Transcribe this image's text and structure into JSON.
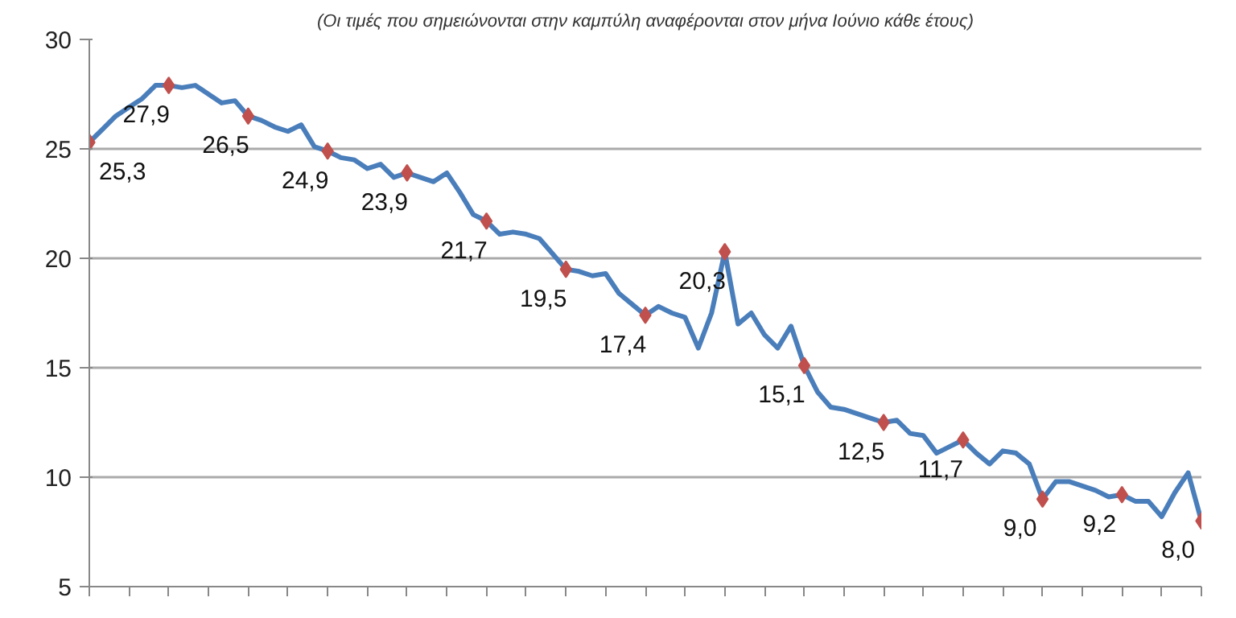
{
  "chart_data": {
    "type": "line",
    "subtitle": "(Οι τιμές που σημειώνονται στην καμπύλη αναφέρονται στον μήνα Ιούνιο κάθε έτους)",
    "categories": [
      null,
      null,
      null,
      null,
      null,
      null,
      null,
      null,
      null,
      null,
      null,
      null,
      null,
      null,
      null,
      null,
      null,
      null,
      null,
      null,
      null,
      null,
      null,
      null,
      null,
      null,
      null,
      null,
      null,
      null,
      null,
      null,
      null,
      null,
      null,
      null,
      null,
      null,
      null,
      null,
      null,
      null,
      null,
      null,
      null,
      null,
      null,
      null,
      null,
      null,
      null,
      null,
      null,
      null,
      null,
      null,
      null,
      null,
      null,
      null,
      null,
      null,
      null,
      null,
      null,
      null,
      null,
      null,
      null,
      null,
      null,
      null,
      null,
      null,
      null,
      null,
      null,
      null,
      null,
      null,
      null,
      null,
      null,
      null,
      null
    ],
    "series": [
      {
        "color": "#4a7ebb",
        "values": [
          25.3,
          25.9,
          26.5,
          26.9,
          27.3,
          27.9,
          27.9,
          27.8,
          27.9,
          27.5,
          27.1,
          27.2,
          26.5,
          26.3,
          26.0,
          25.8,
          26.1,
          25.1,
          24.9,
          24.6,
          24.5,
          24.1,
          24.3,
          23.7,
          23.9,
          23.7,
          23.5,
          23.9,
          23.0,
          22.0,
          21.7,
          21.1,
          21.2,
          21.1,
          20.9,
          20.2,
          19.5,
          19.4,
          19.2,
          19.3,
          18.4,
          17.9,
          17.4,
          17.8,
          17.5,
          17.3,
          15.9,
          17.5,
          20.3,
          17.0,
          17.5,
          16.5,
          15.9,
          16.9,
          15.1,
          13.9,
          13.2,
          13.1,
          12.9,
          12.7,
          12.5,
          12.6,
          12.0,
          11.9,
          11.1,
          11.4,
          11.7,
          11.1,
          10.6,
          11.2,
          11.1,
          10.6,
          9.0,
          9.8,
          9.8,
          9.6,
          9.4,
          9.1,
          9.2,
          8.9,
          8.9,
          8.2,
          9.3,
          10.2,
          8.0
        ]
      },
      {
        "type": "scatter",
        "marker": "diamond",
        "color": "#c0504d",
        "values": [
          25.3,
          null,
          null,
          null,
          null,
          null,
          27.9,
          null,
          null,
          null,
          null,
          null,
          26.5,
          null,
          null,
          null,
          null,
          null,
          24.9,
          null,
          null,
          null,
          null,
          null,
          23.9,
          null,
          null,
          null,
          null,
          null,
          21.7,
          null,
          null,
          null,
          null,
          null,
          19.5,
          null,
          null,
          null,
          null,
          null,
          17.4,
          null,
          null,
          null,
          null,
          null,
          20.3,
          null,
          null,
          null,
          null,
          null,
          15.1,
          null,
          null,
          null,
          null,
          null,
          12.5,
          null,
          null,
          null,
          null,
          null,
          11.7,
          null,
          null,
          null,
          null,
          null,
          9.0,
          null,
          null,
          null,
          null,
          null,
          9.2,
          null,
          null,
          null,
          null,
          null,
          8.0
        ],
        "value_labels": [
          "25,3",
          null,
          null,
          null,
          null,
          null,
          "27,9",
          null,
          null,
          null,
          null,
          null,
          "26,5",
          null,
          null,
          null,
          null,
          null,
          "24,9",
          null,
          null,
          null,
          null,
          null,
          "23,9",
          null,
          null,
          null,
          null,
          null,
          "21,7",
          null,
          null,
          null,
          null,
          null,
          "19,5",
          null,
          null,
          null,
          null,
          null,
          "17,4",
          null,
          null,
          null,
          null,
          null,
          "20,3",
          null,
          null,
          null,
          null,
          null,
          "15,1",
          null,
          null,
          null,
          null,
          null,
          "12,5",
          null,
          null,
          null,
          null,
          null,
          "11,7",
          null,
          null,
          null,
          null,
          null,
          "9,0",
          null,
          null,
          null,
          null,
          null,
          "9,2",
          null,
          null,
          null,
          null,
          null,
          "8,0"
        ]
      }
    ],
    "ylim": [
      5,
      30
    ],
    "yticks": [
      5,
      10,
      15,
      20,
      25,
      30
    ],
    "grid": "y"
  }
}
